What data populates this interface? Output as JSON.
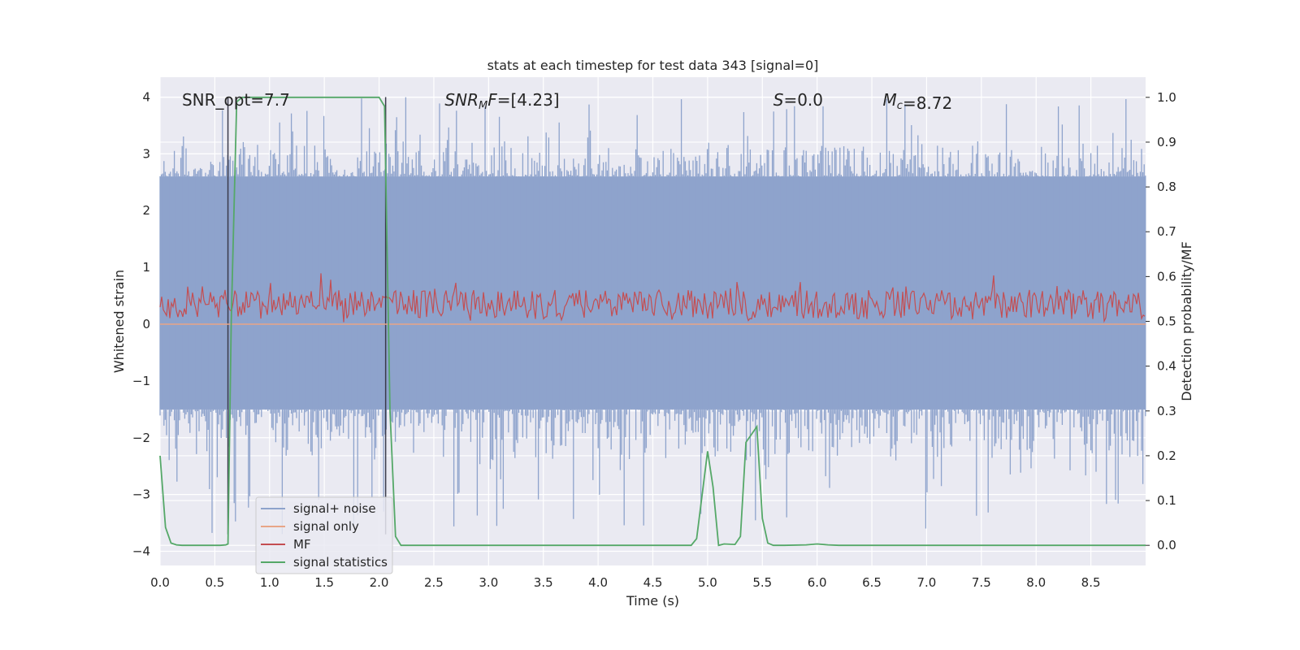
{
  "chart_data": {
    "type": "line",
    "title": "stats at each timestep for test data 343 [signal=0]",
    "xlabel": "Time (s)",
    "ylabel": "Whitened strain",
    "y2label": "Detection probability/MF",
    "xlim": [
      0.0,
      9.0
    ],
    "ylim": [
      -4.25,
      4.35
    ],
    "y2lim": [
      -0.045,
      1.045
    ],
    "xticks": [
      "0.0",
      "0.5",
      "1.0",
      "1.5",
      "2.0",
      "2.5",
      "3.0",
      "3.5",
      "4.0",
      "4.5",
      "5.0",
      "5.5",
      "6.0",
      "6.5",
      "7.0",
      "7.5",
      "8.0",
      "8.5"
    ],
    "yticks": [
      "4",
      "3",
      "2",
      "1",
      "0",
      "−1",
      "−2",
      "−3",
      "−4"
    ],
    "y2ticks": [
      "1.0",
      "0.9",
      "0.8",
      "0.7",
      "0.6",
      "0.5",
      "0.4",
      "0.3",
      "0.2",
      "0.1",
      "0.0"
    ],
    "grid": true,
    "legend_position": "lower-left",
    "annotations": [
      {
        "text": "SNR_opt=7.7",
        "x": 0.2
      },
      {
        "text": "SNR_MF=[4.23]",
        "x": 2.6
      },
      {
        "text": "S=0.0",
        "x": 5.6
      },
      {
        "text": "M_c=8.72",
        "x": 6.6
      }
    ],
    "vlines": [
      0.62,
      2.06
    ],
    "series": [
      {
        "name": "signal+ noise",
        "axis": "left",
        "color": "#8ea3cc",
        "kind": "noise-band",
        "range": [
          -3.7,
          4.0
        ],
        "typical_range": [
          -1.5,
          2.6
        ]
      },
      {
        "name": "signal only",
        "axis": "left",
        "color": "#e8a587",
        "x": [
          0.0,
          9.0
        ],
        "values": [
          0.0,
          0.0
        ]
      },
      {
        "name": "MF",
        "axis": "right",
        "color": "#c44e52",
        "kind": "noise-band",
        "range": [
          0.495,
          0.61
        ],
        "typical_range": [
          0.505,
          0.57
        ]
      },
      {
        "name": "signal statistics",
        "axis": "right",
        "color": "#55a868",
        "x": [
          0.0,
          0.05,
          0.1,
          0.15,
          0.2,
          0.3,
          0.4,
          0.5,
          0.55,
          0.6,
          0.62,
          0.65,
          0.7,
          0.75,
          0.8,
          1.0,
          1.5,
          1.9,
          2.0,
          2.05,
          2.1,
          2.15,
          2.2,
          2.25,
          2.5,
          3.0,
          4.0,
          4.85,
          4.9,
          5.0,
          5.05,
          5.1,
          5.15,
          5.25,
          5.3,
          5.35,
          5.45,
          5.5,
          5.55,
          5.6,
          5.7,
          5.9,
          6.0,
          6.1,
          6.2,
          7.0,
          8.0,
          9.0
        ],
        "values": [
          0.2,
          0.04,
          0.005,
          0.001,
          0.0,
          0.0,
          0.0,
          0.0,
          0.0,
          0.001,
          0.003,
          0.5,
          0.99,
          1.0,
          1.0,
          1.0,
          1.0,
          1.0,
          1.0,
          0.98,
          0.3,
          0.02,
          0.0,
          0.0,
          0.0,
          0.0,
          0.0,
          0.0,
          0.015,
          0.21,
          0.13,
          0.0,
          0.003,
          0.002,
          0.02,
          0.23,
          0.265,
          0.06,
          0.005,
          0.0,
          0.0,
          0.001,
          0.003,
          0.001,
          0.0,
          0.0,
          0.0,
          0.0
        ]
      }
    ]
  }
}
